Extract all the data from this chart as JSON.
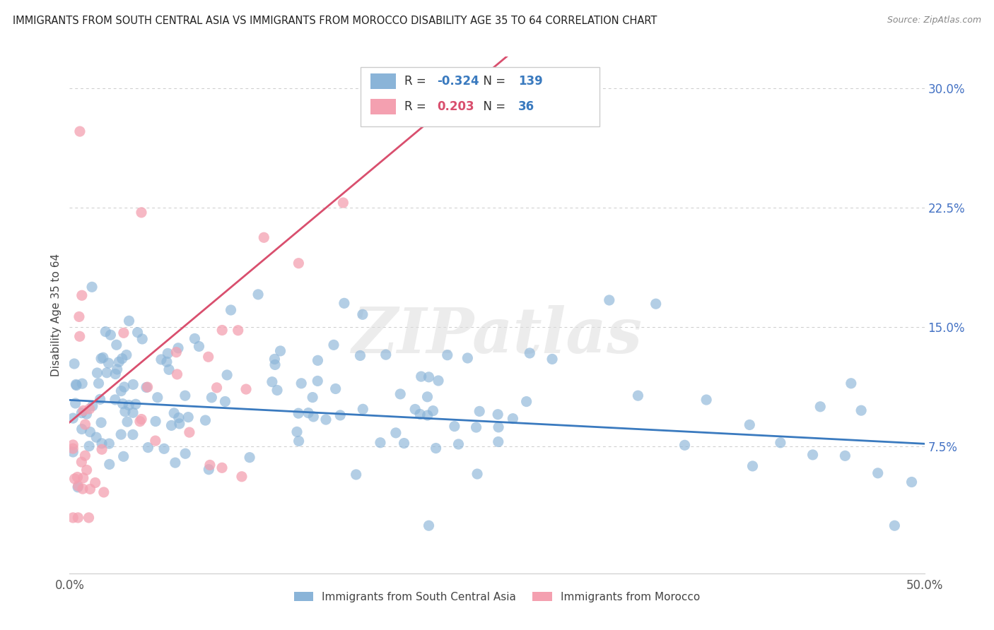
{
  "title": "IMMIGRANTS FROM SOUTH CENTRAL ASIA VS IMMIGRANTS FROM MOROCCO DISABILITY AGE 35 TO 64 CORRELATION CHART",
  "source": "Source: ZipAtlas.com",
  "ylabel": "Disability Age 35 to 64",
  "xlim": [
    0.0,
    0.5
  ],
  "ylim": [
    -0.005,
    0.32
  ],
  "yticks": [
    0.075,
    0.15,
    0.225,
    0.3
  ],
  "ytick_labels": [
    "7.5%",
    "15.0%",
    "22.5%",
    "30.0%"
  ],
  "series1_label": "Immigrants from South Central Asia",
  "series1_color": "#8ab4d8",
  "series1_line_color": "#3a7abf",
  "series1_R": -0.324,
  "series1_N": 139,
  "series2_label": "Immigrants from Morocco",
  "series2_color": "#f4a0b0",
  "series2_line_color": "#d94f6e",
  "series2_R": 0.203,
  "series2_N": 36,
  "watermark": "ZIPatlas",
  "background_color": "#ffffff",
  "grid_color": "#cccccc",
  "R_blue_text": "#3a7abf",
  "R_pink_text": "#d94f6e",
  "N_text": "#3a7abf"
}
